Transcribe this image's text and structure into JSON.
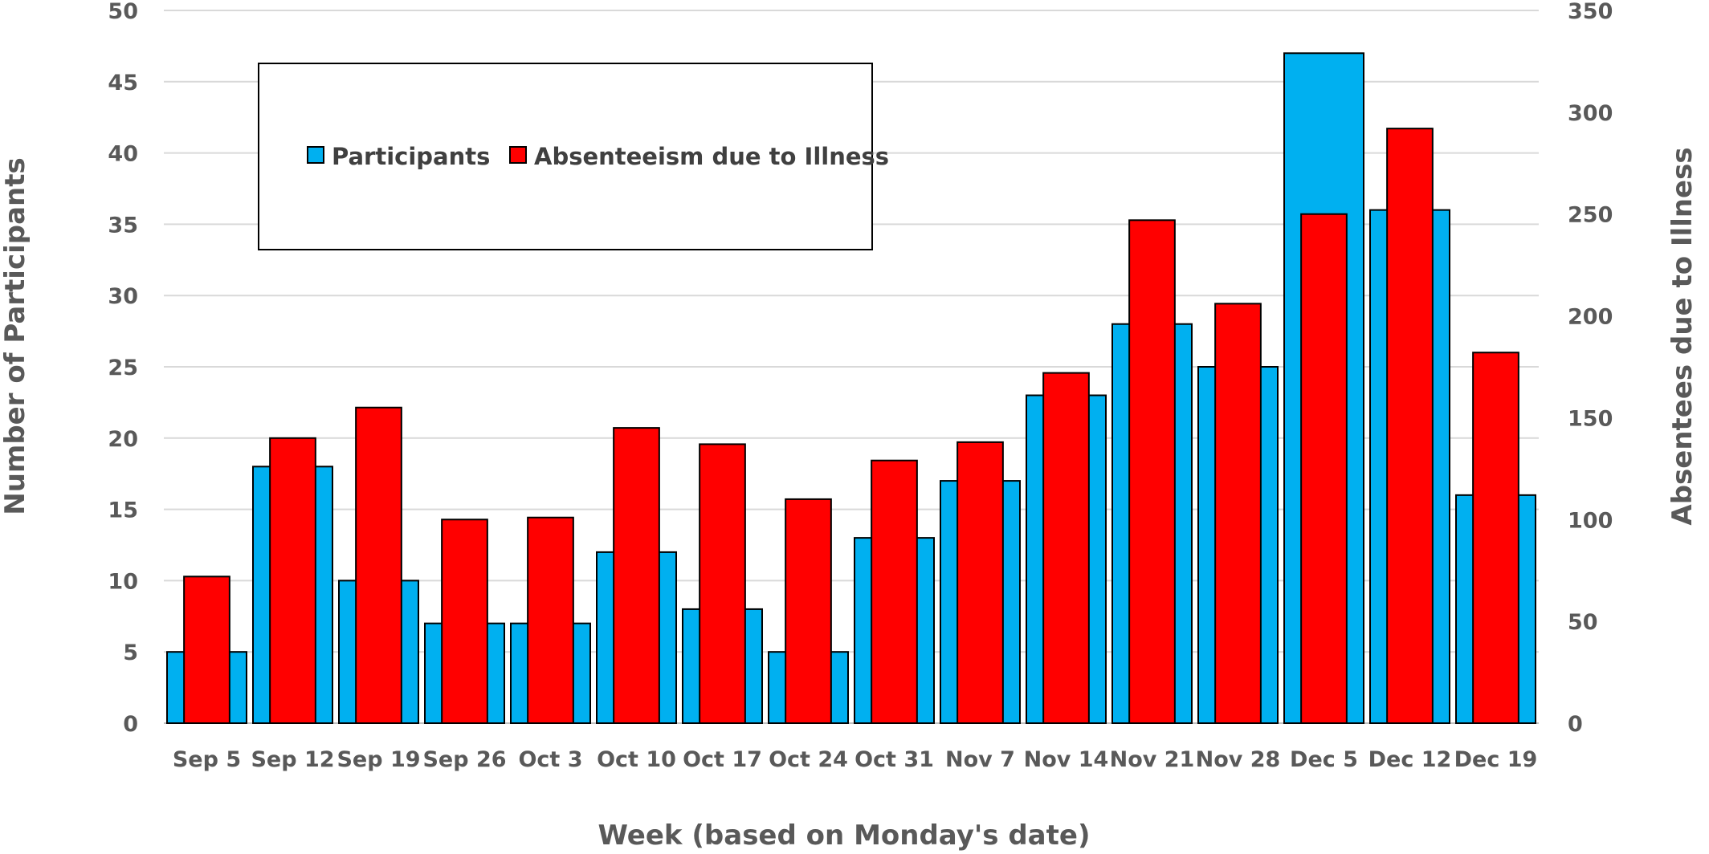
{
  "chart_data": {
    "type": "bar",
    "xlabel": "Week (based on Monday's date)",
    "ylabel": "Number of Participants",
    "y2label": "Absentees due to Illness",
    "categories": [
      "Sep 5",
      "Sep 12",
      "Sep 19",
      "Sep 26",
      "Oct  3",
      "Oct 10",
      "Oct 17",
      "Oct 24",
      "Oct 31",
      "Nov 7",
      "Nov 14",
      "Nov 21",
      "Nov 28",
      "Dec 5",
      "Dec 12",
      "Dec 19"
    ],
    "ylim": [
      0,
      50
    ],
    "y2lim": [
      0,
      350
    ],
    "yticks": [
      "0",
      "5",
      "10",
      "15",
      "20",
      "25",
      "30",
      "35",
      "40",
      "45",
      "50"
    ],
    "y2ticks": [
      "0",
      "50",
      "100",
      "150",
      "200",
      "250",
      "300",
      "350"
    ],
    "grid": true,
    "legend_position": "top-left",
    "series": [
      {
        "name": "Participants",
        "axis": "left",
        "color": "#00b0f0",
        "values": [
          5,
          18,
          10,
          7,
          7,
          12,
          8,
          5,
          13,
          17,
          23,
          28,
          25,
          47,
          36,
          16
        ]
      },
      {
        "name": "Absenteeism due to Illness",
        "axis": "right",
        "color": "#ff0000",
        "values": [
          72,
          140,
          155,
          100,
          101,
          145,
          137,
          110,
          129,
          138,
          172,
          247,
          206,
          250,
          292,
          182
        ]
      }
    ]
  }
}
